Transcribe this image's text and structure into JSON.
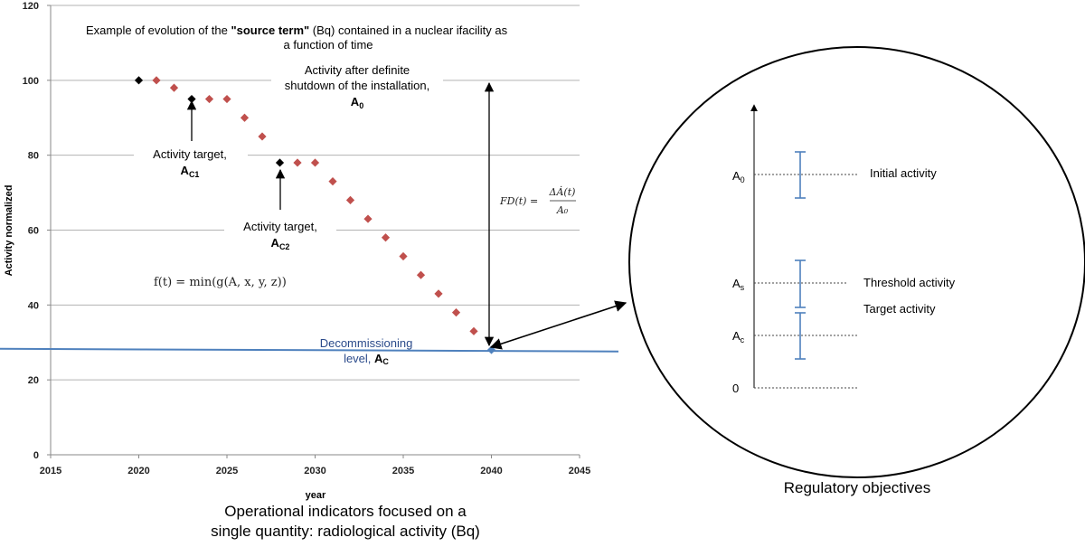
{
  "chart_data": {
    "type": "scatter",
    "title_pre": "Example of evolution of the ",
    "title_bold": "\"source term\"",
    "title_post": " (Bq) contained in a nuclear ifacility as",
    "title_line2": "a function of time",
    "xlabel": "year",
    "ylabel": "Activity normalized",
    "xlim": [
      2015,
      2045
    ],
    "ylim": [
      0,
      120
    ],
    "x_ticks": [
      "2015",
      "2020",
      "2025",
      "2030",
      "2035",
      "2040",
      "2045"
    ],
    "y_ticks": [
      "0",
      "20",
      "40",
      "60",
      "80",
      "100",
      "120"
    ],
    "grid": true,
    "series": [
      {
        "color": "#c0504d",
        "marker": "diamond",
        "points": [
          [
            2021,
            100
          ],
          [
            2022,
            98
          ],
          [
            2024,
            95
          ],
          [
            2025,
            95
          ],
          [
            2026,
            90
          ],
          [
            2027,
            85
          ],
          [
            2029,
            78
          ],
          [
            2030,
            78
          ],
          [
            2031,
            73
          ],
          [
            2032,
            68
          ],
          [
            2033,
            63
          ],
          [
            2034,
            58
          ],
          [
            2035,
            53
          ],
          [
            2036,
            48
          ],
          [
            2037,
            43
          ],
          [
            2038,
            38
          ],
          [
            2039,
            33
          ]
        ]
      },
      {
        "color": "#000000",
        "marker": "diamond",
        "points": [
          [
            2020,
            100
          ],
          [
            2023,
            95
          ],
          [
            2028,
            78
          ]
        ]
      },
      {
        "color": "#4f81bd",
        "marker": "diamond",
        "points": [
          [
            2040,
            28
          ]
        ]
      }
    ],
    "decommissioning_line": {
      "color": "#4f81bd",
      "y_start": 28.3,
      "y_end": 27.6
    },
    "annotations": {
      "activity_after_line1": "Activity after definite",
      "activity_after_line2": "shutdown of the installation,",
      "activity_after_sym": "A",
      "activity_after_sub": "0",
      "target1_line1": "Activity target,",
      "target1_sym": "A",
      "target1_sub": "C1",
      "target2_line1": "Activity target,",
      "target2_sym": "A",
      "target2_sub": "C2",
      "decom_line1": "Decommissioning",
      "decom_line2": "level, ",
      "decom_sym": "A",
      "decom_sub": "C",
      "formula_f": "f(t) = min(g(A, x, y, z))",
      "formula_fd_lhs": "FD(t) =",
      "formula_fd_num": "ΔȦ(t)",
      "formula_fd_den": "A₀"
    }
  },
  "caption_left_line1": "Operational indicators focused on a",
  "caption_left_line2": "single quantity: radiological activity (Bq)",
  "regulatory": {
    "caption": "Regulatory objectives",
    "levels": [
      {
        "sym": "A",
        "sub": "0",
        "label": "Initial activity"
      },
      {
        "sym": "A",
        "sub": "s",
        "label": "Threshold activity"
      },
      {
        "sym": "A",
        "sub": "c",
        "label": "Target activity"
      },
      {
        "sym": "0",
        "sub": "",
        "label": ""
      }
    ],
    "bar_color": "#4f81bd"
  }
}
